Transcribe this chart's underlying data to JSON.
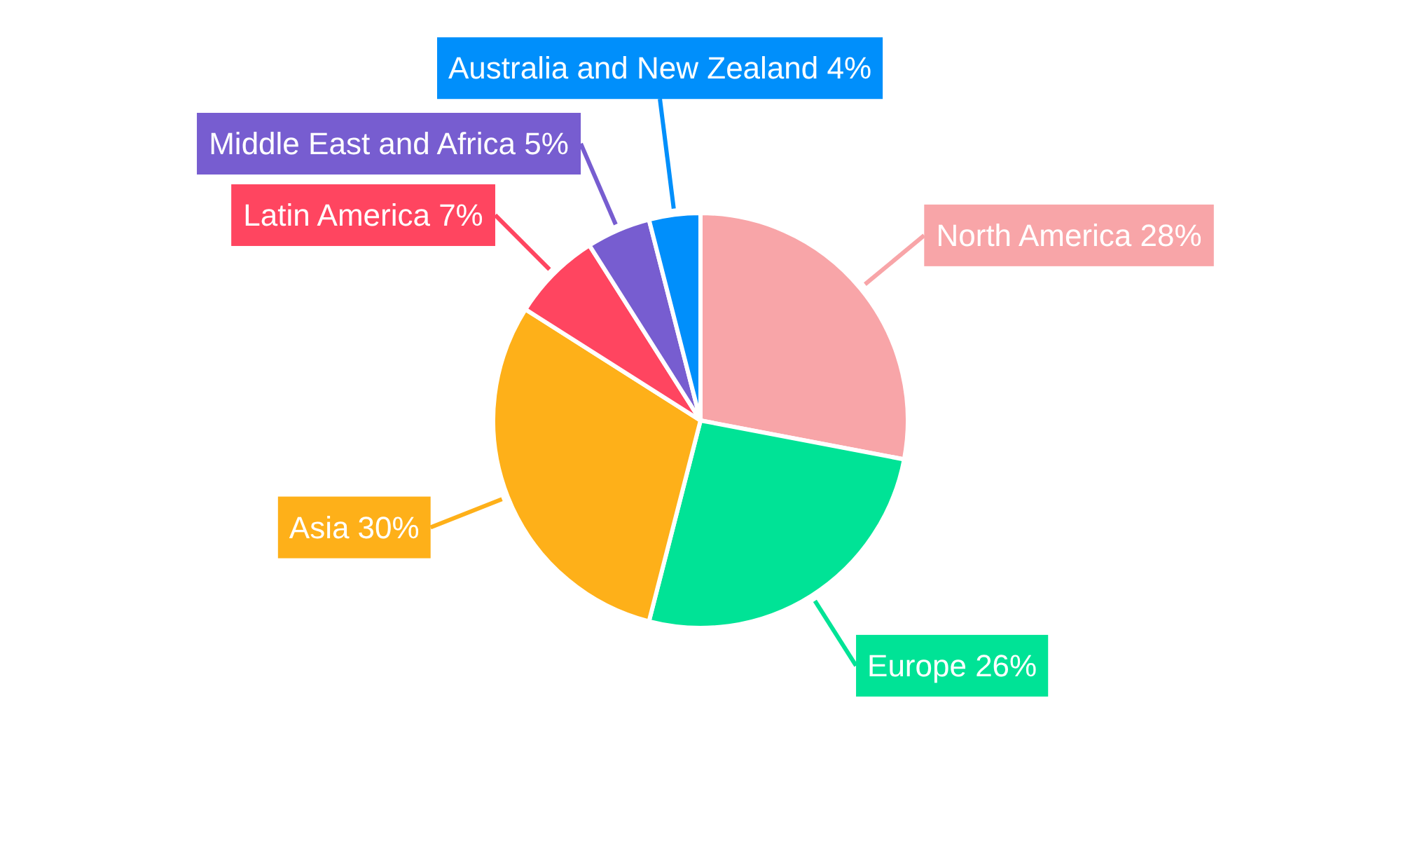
{
  "chart_data": {
    "type": "pie",
    "categories": [
      "North America",
      "Europe",
      "Asia",
      "Latin America",
      "Middle East and Africa",
      "Australia and New Zealand"
    ],
    "values": [
      28,
      26,
      30,
      7,
      5,
      4
    ],
    "value_labels": [
      "28%",
      "26%",
      "30%",
      "7%",
      "5%",
      "4%"
    ],
    "colors": [
      "#f8a5a8",
      "#00e396",
      "#feb019",
      "#ff4560",
      "#775dd0",
      "#008ffb"
    ]
  }
}
